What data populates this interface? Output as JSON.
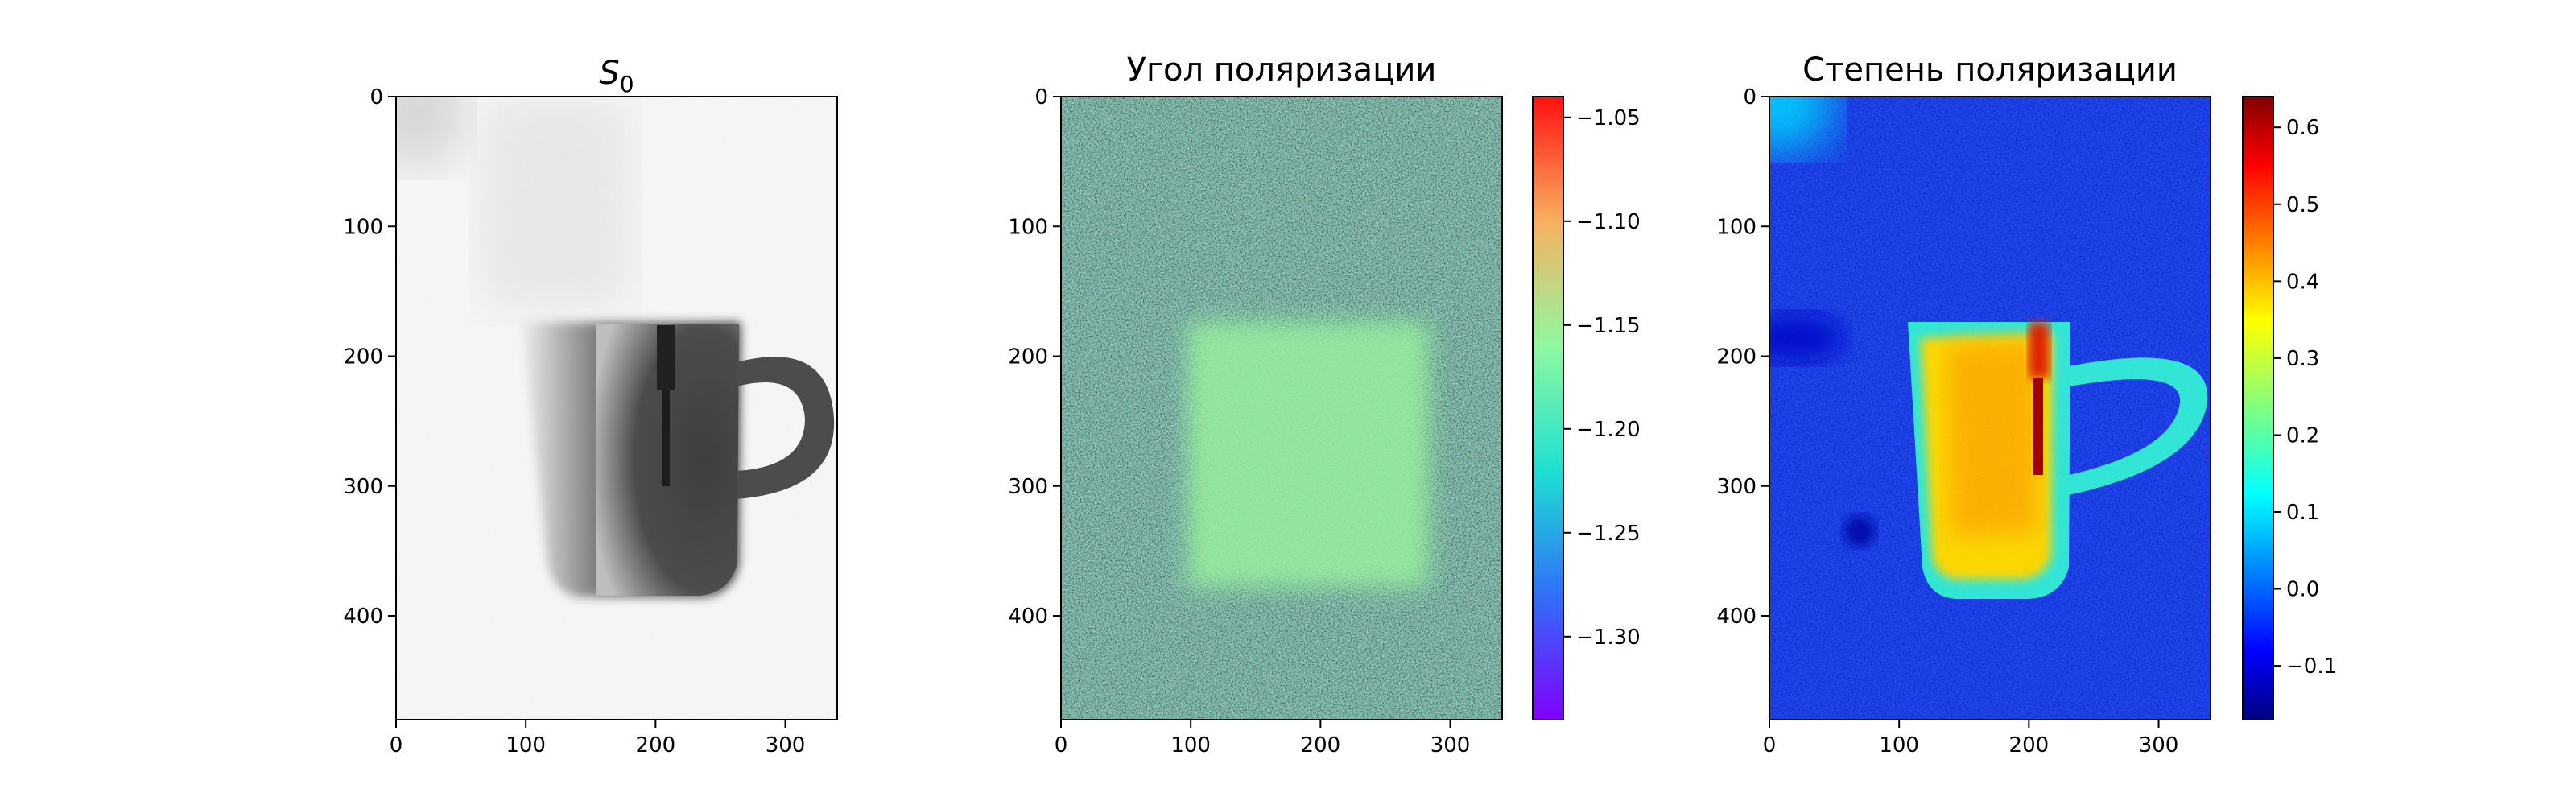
{
  "chart_data": [
    {
      "type": "heatmap",
      "title": "S",
      "title_subscript": "0",
      "colormap": "gray",
      "x_ticks": [
        0,
        100,
        200,
        300
      ],
      "y_ticks": [
        0,
        100,
        200,
        300,
        400
      ],
      "xlim": [
        0,
        340
      ],
      "ylim": [
        480,
        0
      ],
      "content": "grayscale intensity image of a mug with handle and a spoon inside"
    },
    {
      "type": "heatmap",
      "title": "Угол поляризации",
      "colormap": "rainbow",
      "x_ticks": [
        0,
        100,
        200,
        300
      ],
      "y_ticks": [
        0,
        100,
        200,
        300,
        400
      ],
      "xlim": [
        0,
        340
      ],
      "ylim": [
        480,
        0
      ],
      "colorbar": {
        "range": [
          -1.34,
          -1.04
        ],
        "ticks": [
          -1.05,
          -1.1,
          -1.15,
          -1.2,
          -1.25,
          -1.3
        ],
        "tick_labels": [
          "−1.05",
          "−1.10",
          "−1.15",
          "−1.20",
          "−1.25",
          "−1.30"
        ]
      }
    },
    {
      "type": "heatmap",
      "title": "Степень поляризации",
      "colormap": "jet",
      "x_ticks": [
        0,
        100,
        200,
        300
      ],
      "y_ticks": [
        0,
        100,
        200,
        300,
        400
      ],
      "xlim": [
        0,
        340
      ],
      "ylim": [
        480,
        0
      ],
      "colorbar": {
        "range": [
          -0.17,
          0.64
        ],
        "ticks": [
          0.6,
          0.5,
          0.4,
          0.3,
          0.2,
          0.1,
          0.0,
          -0.1
        ],
        "tick_labels": [
          "0.6",
          "0.5",
          "0.4",
          "0.3",
          "0.2",
          "0.1",
          "0.0",
          "−0.1"
        ]
      }
    }
  ]
}
